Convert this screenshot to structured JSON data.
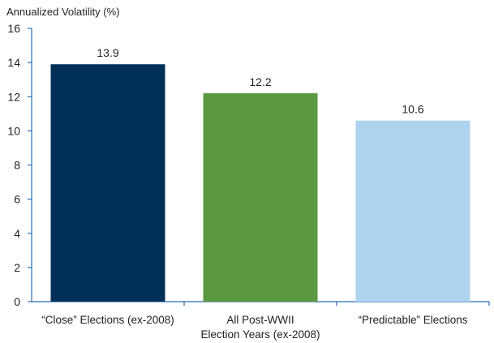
{
  "chart_data": {
    "type": "bar",
    "title": "",
    "ylabel": "Annualized Volatility (%)",
    "xlabel": "",
    "ylim": [
      0,
      16
    ],
    "yticks": [
      0,
      2,
      4,
      6,
      8,
      10,
      12,
      14,
      16
    ],
    "categories": [
      [
        "“Close” Elections (ex-2008)"
      ],
      [
        "All Post-WWII",
        "Election Years (ex-2008)"
      ],
      [
        "“Predictable” Elections"
      ]
    ],
    "values": [
      13.9,
      12.2,
      10.6
    ],
    "value_labels": [
      "13.9",
      "12.2",
      "10.6"
    ],
    "colors": [
      "#003057",
      "#5b9941",
      "#aed3ee"
    ],
    "axis_color": "#2a6db5",
    "grid": false,
    "legend": "none"
  }
}
